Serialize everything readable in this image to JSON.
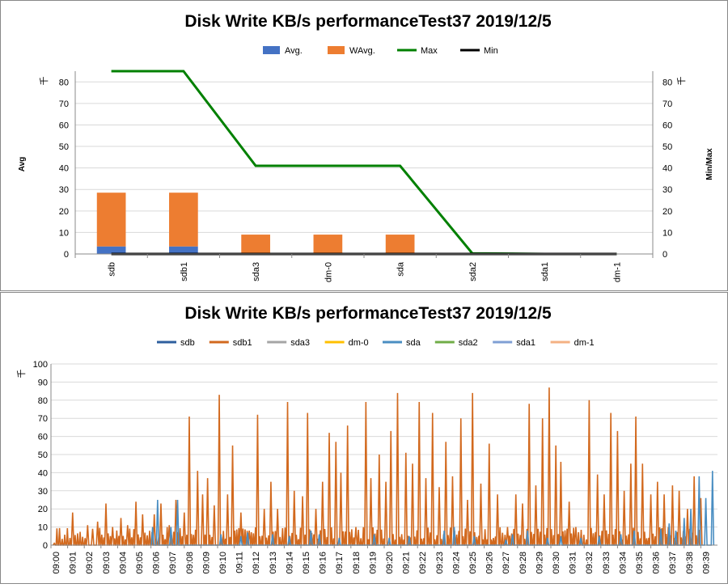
{
  "chart_data": [
    {
      "type": "bar",
      "title": "Disk Write KB/s performanceTest37 2019/12/5",
      "ylabel": "Avg",
      "ylabel_right": "Min/Max",
      "unit_left": "千",
      "unit_right": "千",
      "categories": [
        "sdb",
        "sdb1",
        "sda3",
        "dm-0",
        "sda",
        "sda2",
        "sda1",
        "dm-1"
      ],
      "ylim": [
        0,
        85
      ],
      "yticks": [
        0,
        10,
        20,
        30,
        40,
        50,
        60,
        70,
        80
      ],
      "y2lim": [
        0,
        85
      ],
      "y2ticks": [
        0,
        10,
        20,
        30,
        40,
        50,
        60,
        70,
        80
      ],
      "legend_position": "top",
      "grid": true,
      "series": [
        {
          "name": "Avg.",
          "kind": "bar",
          "color": "#4472c4",
          "values": [
            3.5,
            3.5,
            0,
            0,
            0,
            0,
            0,
            0
          ]
        },
        {
          "name": "WAvg.",
          "kind": "bar",
          "color": "#ed7d31",
          "values": [
            25,
            25,
            9,
            9,
            9,
            0,
            0,
            0
          ]
        },
        {
          "name": "Max",
          "kind": "line",
          "axis": "right",
          "color": "#008000",
          "values": [
            85,
            85,
            41,
            41,
            41,
            0.3,
            0,
            0
          ]
        },
        {
          "name": "Min",
          "kind": "line",
          "axis": "right",
          "color": "#000000",
          "values": [
            0,
            0,
            0,
            0,
            0,
            0,
            0,
            0
          ]
        }
      ]
    },
    {
      "type": "line",
      "title": "Disk Write KB/s performanceTest37 2019/12/5",
      "unit_left": "千",
      "ylim": [
        0,
        100
      ],
      "yticks": [
        0,
        10,
        20,
        30,
        40,
        50,
        60,
        70,
        80,
        90,
        100
      ],
      "legend_position": "top",
      "grid": true,
      "x": [
        "09:00",
        "09:01",
        "09:02",
        "09:03",
        "09:04",
        "09:05",
        "09:06",
        "09:07",
        "09:08",
        "09:09",
        "09:10",
        "09:11",
        "09:12",
        "09:13",
        "09:14",
        "09:15",
        "09:16",
        "09:17",
        "09:18",
        "09:19",
        "09:20",
        "09:21",
        "09:22",
        "09:23",
        "09:24",
        "09:25",
        "09:26",
        "09:27",
        "09:28",
        "09:29",
        "09:30",
        "09:31",
        "09:32",
        "09:33",
        "09:34",
        "09:35",
        "09:36",
        "09:37",
        "09:38",
        "09:39"
      ],
      "series": [
        {
          "name": "sdb",
          "color": "#2e5f9e"
        },
        {
          "name": "sdb1",
          "color": "#d2691e",
          "peaks": [
            [
              0.2,
              1
            ],
            [
              1.3,
              18
            ],
            [
              2.2,
              11
            ],
            [
              2.5,
              9
            ],
            [
              2.8,
              13
            ],
            [
              3.3,
              23
            ],
            [
              3.7,
              10
            ],
            [
              4.2,
              15
            ],
            [
              4.6,
              11
            ],
            [
              5.1,
              24
            ],
            [
              5.5,
              17
            ],
            [
              6.2,
              17
            ],
            [
              6.6,
              23
            ],
            [
              7.1,
              11
            ],
            [
              7.5,
              25
            ],
            [
              8.0,
              18
            ],
            [
              8.3,
              71
            ],
            [
              8.8,
              41
            ],
            [
              9.1,
              28
            ],
            [
              9.4,
              37
            ],
            [
              9.8,
              22
            ],
            [
              10.1,
              83
            ],
            [
              10.6,
              28
            ],
            [
              10.9,
              55
            ],
            [
              11.4,
              18
            ],
            [
              11.9,
              8
            ],
            [
              12.4,
              72
            ],
            [
              12.8,
              20
            ],
            [
              13.2,
              35
            ],
            [
              13.6,
              20
            ],
            [
              14.2,
              79
            ],
            [
              14.6,
              30
            ],
            [
              15.1,
              27
            ],
            [
              15.4,
              73
            ],
            [
              15.9,
              20
            ],
            [
              16.3,
              35
            ],
            [
              16.7,
              62
            ],
            [
              17.1,
              57
            ],
            [
              17.4,
              40
            ],
            [
              17.8,
              66
            ],
            [
              18.3,
              10
            ],
            [
              18.9,
              79
            ],
            [
              19.2,
              37
            ],
            [
              19.7,
              50
            ],
            [
              20.1,
              35
            ],
            [
              20.4,
              63
            ],
            [
              20.8,
              84
            ],
            [
              21.3,
              51
            ],
            [
              21.7,
              45
            ],
            [
              22.1,
              79
            ],
            [
              22.5,
              37
            ],
            [
              22.9,
              73
            ],
            [
              23.3,
              32
            ],
            [
              23.7,
              57
            ],
            [
              24.1,
              38
            ],
            [
              24.6,
              70
            ],
            [
              25.0,
              25
            ],
            [
              25.3,
              84
            ],
            [
              25.8,
              34
            ],
            [
              26.3,
              56
            ],
            [
              26.8,
              28
            ],
            [
              27.4,
              10
            ],
            [
              27.9,
              28
            ],
            [
              28.3,
              23
            ],
            [
              28.7,
              78
            ],
            [
              29.1,
              33
            ],
            [
              29.5,
              70
            ],
            [
              29.9,
              87
            ],
            [
              30.3,
              55
            ],
            [
              30.6,
              46
            ],
            [
              31.1,
              24
            ],
            [
              31.5,
              10
            ],
            [
              32.3,
              80
            ],
            [
              32.8,
              39
            ],
            [
              33.2,
              28
            ],
            [
              33.6,
              73
            ],
            [
              34.0,
              63
            ],
            [
              34.4,
              30
            ],
            [
              34.8,
              45
            ],
            [
              35.1,
              71
            ],
            [
              35.5,
              45
            ],
            [
              36.0,
              28
            ],
            [
              36.4,
              35
            ],
            [
              36.8,
              28
            ],
            [
              37.3,
              33
            ],
            [
              37.7,
              30
            ],
            [
              38.2,
              20
            ],
            [
              38.6,
              38
            ],
            [
              39.0,
              26
            ]
          ]
        },
        {
          "name": "sda3",
          "color": "#a5a5a5"
        },
        {
          "name": "dm-0",
          "color": "#ffc000"
        },
        {
          "name": "sda",
          "color": "#4a8ec2",
          "peaks": [
            [
              6.1,
              10
            ],
            [
              6.4,
              25
            ],
            [
              7.2,
              10
            ],
            [
              7.6,
              25
            ],
            [
              10.2,
              6
            ],
            [
              11.4,
              5
            ],
            [
              11.8,
              7
            ],
            [
              13.3,
              6
            ],
            [
              14.3,
              5
            ],
            [
              15.6,
              8
            ],
            [
              16.1,
              6
            ],
            [
              17.3,
              4
            ],
            [
              19.4,
              6
            ],
            [
              20.3,
              4
            ],
            [
              21.5,
              5
            ],
            [
              23.6,
              8
            ],
            [
              24.2,
              10
            ],
            [
              25.4,
              5
            ],
            [
              27.3,
              3
            ],
            [
              27.7,
              6
            ],
            [
              28.6,
              8
            ],
            [
              29.8,
              4
            ],
            [
              30.6,
              5
            ],
            [
              31.8,
              4
            ],
            [
              32.9,
              5
            ],
            [
              34.2,
              6
            ],
            [
              35.0,
              8
            ],
            [
              36.6,
              9
            ],
            [
              37.1,
              12
            ],
            [
              37.5,
              8
            ],
            [
              38.0,
              15
            ],
            [
              38.4,
              20
            ],
            [
              38.9,
              38
            ],
            [
              39.3,
              26
            ],
            [
              39.7,
              41
            ]
          ]
        },
        {
          "name": "sda2",
          "color": "#70ad47"
        },
        {
          "name": "sda1",
          "color": "#7f9fd4"
        },
        {
          "name": "dm-1",
          "color": "#f4b183"
        }
      ]
    }
  ]
}
